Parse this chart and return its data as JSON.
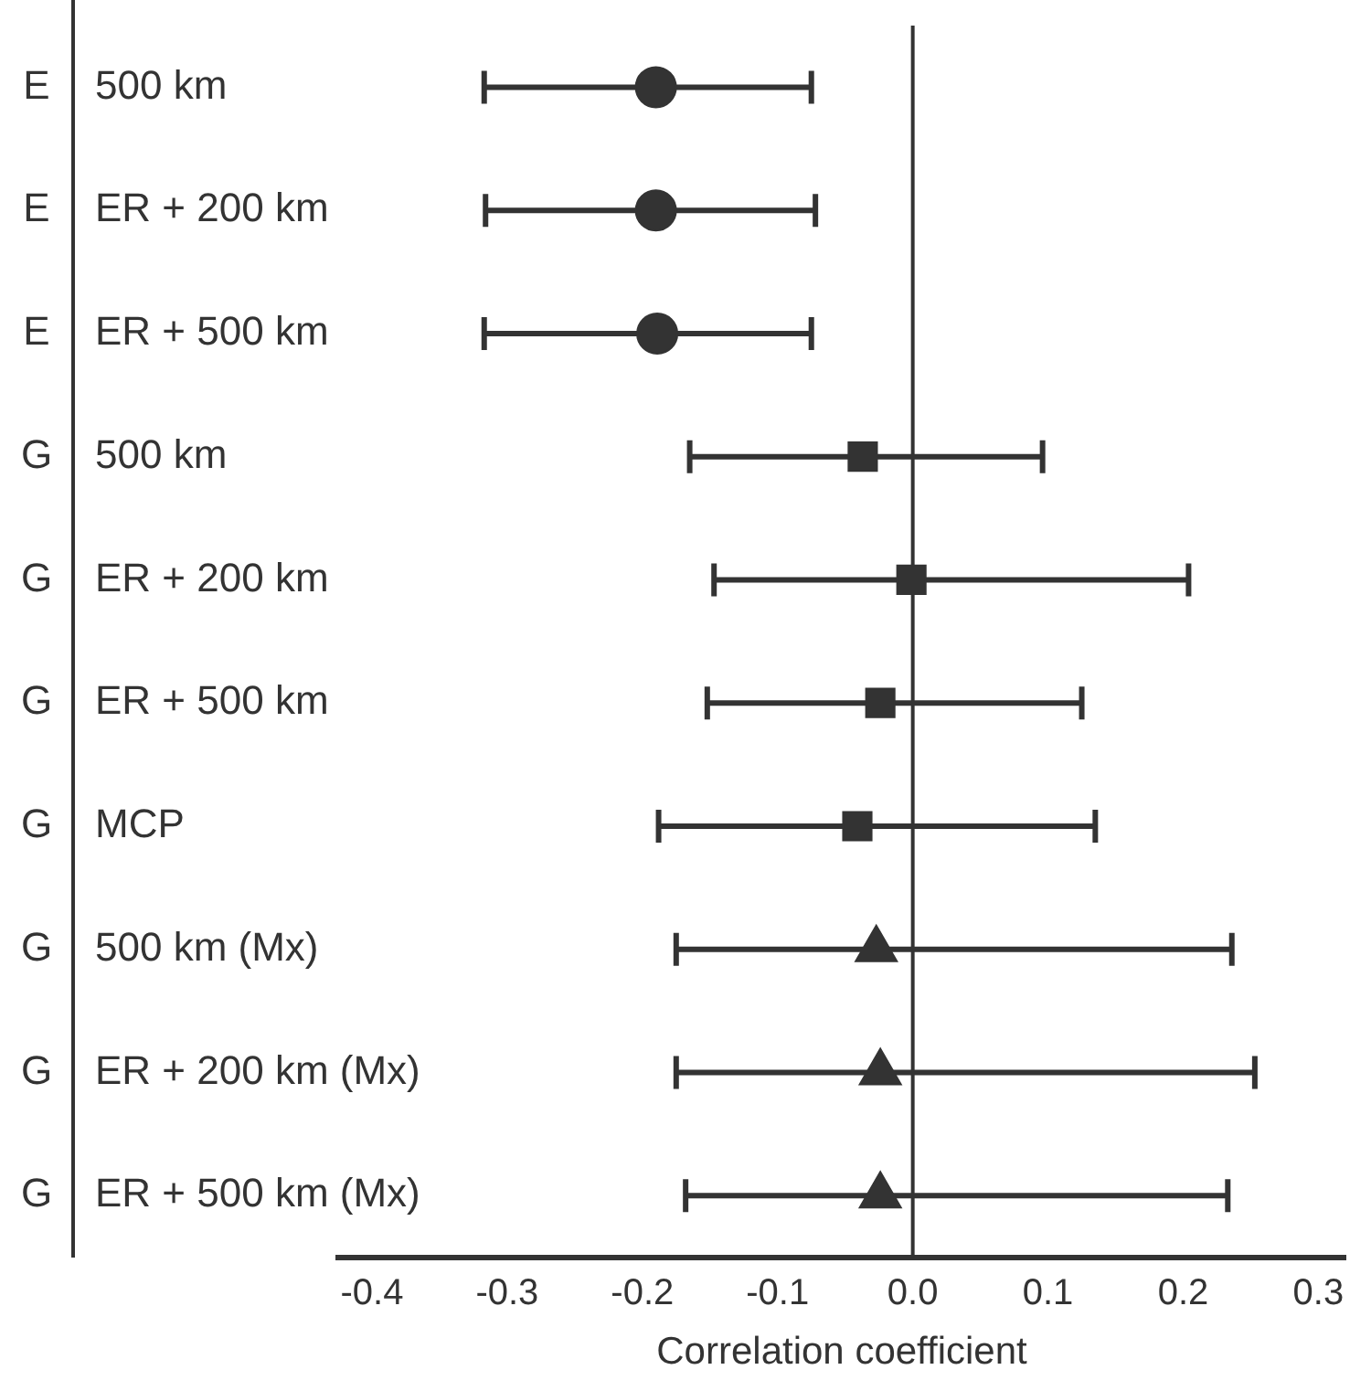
{
  "chart_data": {
    "type": "scatter",
    "orientation": "horizontal",
    "xlabel": "Correlation coefficient",
    "categories": [
      "500 km",
      "ER + 200 km",
      "ER + 500 km",
      "500 km",
      "ER + 200 km",
      "ER + 500 km",
      "MCP",
      "500 km (Mx)",
      "ER + 200 km (Mx)",
      "ER + 500 km (Mx)"
    ],
    "annotations": [
      "E",
      "E",
      "E",
      "G",
      "G",
      "G",
      "G",
      "G",
      "G",
      "G"
    ],
    "series": [
      {
        "color": "#333333",
        "marker": "circle",
        "values": [
          -0.19,
          -0.19,
          -0.189,
          null,
          null,
          null,
          null,
          null,
          null,
          null
        ],
        "errors": [
          [
            -0.317,
            -0.075
          ],
          [
            -0.316,
            -0.072
          ],
          [
            -0.317,
            -0.075
          ],
          null,
          null,
          null,
          null,
          null,
          null,
          null
        ]
      },
      {
        "color": "#333333",
        "marker": "square",
        "values": [
          null,
          null,
          null,
          -0.037,
          -0.001,
          -0.024,
          -0.041,
          null,
          null,
          null
        ],
        "errors": [
          null,
          null,
          null,
          [
            -0.165,
            0.096
          ],
          [
            -0.147,
            0.204
          ],
          [
            -0.152,
            0.125
          ],
          [
            -0.188,
            0.135
          ],
          null,
          null,
          null
        ]
      },
      {
        "color": "#333333",
        "marker": "triangle",
        "values": [
          null,
          null,
          null,
          null,
          null,
          null,
          null,
          -0.027,
          -0.024,
          -0.024
        ],
        "errors": [
          null,
          null,
          null,
          null,
          null,
          null,
          null,
          [
            -0.175,
            0.236
          ],
          [
            -0.175,
            0.253
          ],
          [
            -0.168,
            0.233
          ]
        ]
      }
    ],
    "xlim": [
      -0.425,
      0.32
    ],
    "xticks": [
      -0.4,
      -0.3,
      -0.2,
      -0.1,
      {
        "value": 0,
        "label": "0.0"
      },
      0.1,
      0.2,
      0.3
    ],
    "ref_lines": [
      {
        "axis": "x",
        "value": 0,
        "color": "#333333"
      }
    ],
    "grid": false,
    "legend": false
  }
}
